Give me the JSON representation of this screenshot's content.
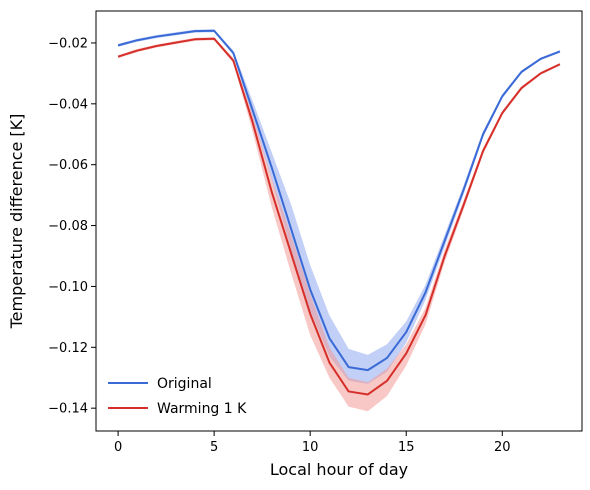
{
  "chart_data": {
    "type": "line",
    "title": "",
    "xlabel": "Local hour of day",
    "ylabel": "Temperature difference [K]",
    "xlim": [
      -1.15,
      24.15
    ],
    "ylim": [
      -0.1475,
      -0.0095
    ],
    "xticks": [
      0,
      5,
      10,
      15,
      20
    ],
    "yticks": [
      -0.02,
      -0.04,
      -0.06,
      -0.08,
      -0.1,
      -0.12,
      -0.14
    ],
    "ytick_labels": [
      "−0.02",
      "−0.04",
      "−0.06",
      "−0.08",
      "−0.10",
      "−0.12",
      "−0.14"
    ],
    "grid": false,
    "legend_position": "lower-left",
    "x": [
      0,
      1,
      2,
      3,
      4,
      5,
      6,
      7,
      8,
      9,
      10,
      11,
      12,
      13,
      14,
      15,
      16,
      17,
      18,
      19,
      20,
      21,
      22,
      23
    ],
    "series": [
      {
        "name": "Original",
        "color": "#3a6ad6",
        "band_color": "#8fa8ee",
        "values": [
          -0.0208,
          -0.0191,
          -0.0179,
          -0.017,
          -0.0161,
          -0.016,
          -0.0233,
          -0.042,
          -0.061,
          -0.081,
          -0.101,
          -0.117,
          -0.1265,
          -0.1275,
          -0.1235,
          -0.115,
          -0.102,
          -0.085,
          -0.068,
          -0.05,
          -0.0375,
          -0.0295,
          -0.0252,
          -0.0228
        ],
        "band_upper": [
          -0.0203,
          -0.0186,
          -0.0174,
          -0.0165,
          -0.0156,
          -0.0155,
          -0.0225,
          -0.039,
          -0.056,
          -0.073,
          -0.093,
          -0.1095,
          -0.1205,
          -0.1225,
          -0.119,
          -0.1115,
          -0.0995,
          -0.083,
          -0.0665,
          -0.049,
          -0.0368,
          -0.029,
          -0.0248,
          -0.0224
        ],
        "band_lower": [
          -0.0213,
          -0.0196,
          -0.0184,
          -0.0175,
          -0.0166,
          -0.0165,
          -0.024,
          -0.0445,
          -0.065,
          -0.088,
          -0.108,
          -0.123,
          -0.131,
          -0.132,
          -0.128,
          -0.1185,
          -0.1045,
          -0.087,
          -0.0695,
          -0.051,
          -0.0382,
          -0.03,
          -0.0256,
          -0.0232
        ]
      },
      {
        "name": "Warming 1 K",
        "color": "#d62f2a",
        "band_color": "#f29a98",
        "values": [
          -0.0245,
          -0.0225,
          -0.021,
          -0.0199,
          -0.0188,
          -0.0186,
          -0.0258,
          -0.046,
          -0.069,
          -0.089,
          -0.109,
          -0.125,
          -0.1345,
          -0.1355,
          -0.131,
          -0.122,
          -0.1095,
          -0.09,
          -0.073,
          -0.0555,
          -0.043,
          -0.0348,
          -0.03,
          -0.027
        ],
        "band_upper": [
          -0.024,
          -0.022,
          -0.0205,
          -0.0194,
          -0.0183,
          -0.0181,
          -0.025,
          -0.0435,
          -0.0645,
          -0.083,
          -0.1025,
          -0.12,
          -0.13,
          -0.1315,
          -0.127,
          -0.119,
          -0.107,
          -0.088,
          -0.0715,
          -0.0545,
          -0.0423,
          -0.0342,
          -0.0295,
          -0.0266
        ],
        "band_lower": [
          -0.025,
          -0.023,
          -0.0215,
          -0.0204,
          -0.0193,
          -0.0191,
          -0.0266,
          -0.049,
          -0.074,
          -0.0955,
          -0.116,
          -0.13,
          -0.1395,
          -0.141,
          -0.136,
          -0.126,
          -0.1125,
          -0.092,
          -0.0745,
          -0.0565,
          -0.0437,
          -0.0354,
          -0.0305,
          -0.0274
        ]
      }
    ]
  }
}
